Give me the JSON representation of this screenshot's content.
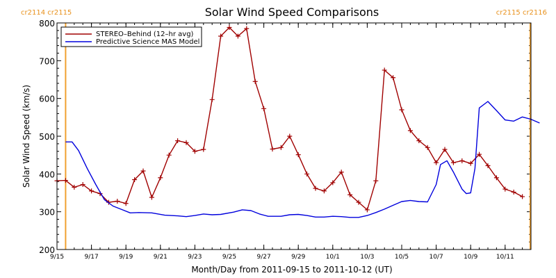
{
  "chart_data": {
    "type": "line",
    "title": "Solar Wind Speed Comparisons",
    "xlabel": "Month/Day from 2011-09-15 to 2011-10-12 (UT)",
    "ylabel": "Solar Wind Speed (km/s)",
    "ylim": [
      200,
      800
    ],
    "yticks": [
      "200",
      "300",
      "400",
      "500",
      "600",
      "700",
      "800"
    ],
    "xlim": [
      "2011-09-15T00:00",
      "2011-10-12T12:00"
    ],
    "xticks": [
      {
        "t": "2011-09-15T00:00",
        "label": "9/15"
      },
      {
        "t": "2011-09-17T00:00",
        "label": "9/17"
      },
      {
        "t": "2011-09-19T00:00",
        "label": "9/19"
      },
      {
        "t": "2011-09-21T00:00",
        "label": "9/21"
      },
      {
        "t": "2011-09-23T00:00",
        "label": "9/23"
      },
      {
        "t": "2011-09-25T00:00",
        "label": "9/25"
      },
      {
        "t": "2011-09-27T00:00",
        "label": "9/27"
      },
      {
        "t": "2011-09-29T00:00",
        "label": "9/29"
      },
      {
        "t": "2011-10-01T00:00",
        "label": "10/1"
      },
      {
        "t": "2011-10-03T00:00",
        "label": "10/3"
      },
      {
        "t": "2011-10-05T00:00",
        "label": "10/5"
      },
      {
        "t": "2011-10-07T00:00",
        "label": "10/7"
      },
      {
        "t": "2011-10-09T00:00",
        "label": "10/9"
      },
      {
        "t": "2011-10-11T00:00",
        "label": "10/11"
      }
    ],
    "rotation_boundaries": [
      {
        "t": "2011-09-15T12:00",
        "label": "cr2114 cr2115",
        "side": "left"
      },
      {
        "t": "2011-10-12T11:00",
        "label": "cr2115 cr2116",
        "side": "right"
      }
    ],
    "legend_position": "top-left",
    "series": [
      {
        "name": "STEREO–Behind (12–hr avg)",
        "color": "#a00000",
        "marker": "plus",
        "points": [
          [
            "2011-09-15T00:00",
            382
          ],
          [
            "2011-09-15T12:00",
            383
          ],
          [
            "2011-09-16T00:00",
            365
          ],
          [
            "2011-09-16T12:00",
            372
          ],
          [
            "2011-09-17T00:00",
            355
          ],
          [
            "2011-09-17T12:00",
            348
          ],
          [
            "2011-09-18T00:00",
            325
          ],
          [
            "2011-09-18T12:00",
            328
          ],
          [
            "2011-09-19T00:00",
            322
          ],
          [
            "2011-09-19T12:00",
            385
          ],
          [
            "2011-09-20T00:00",
            408
          ],
          [
            "2011-09-20T12:00",
            338
          ],
          [
            "2011-09-21T00:00",
            390
          ],
          [
            "2011-09-21T12:00",
            450
          ],
          [
            "2011-09-22T00:00",
            488
          ],
          [
            "2011-09-22T12:00",
            483
          ],
          [
            "2011-09-23T00:00",
            460
          ],
          [
            "2011-09-23T12:00",
            465
          ],
          [
            "2011-09-24T00:00",
            597
          ],
          [
            "2011-09-24T12:00",
            765
          ],
          [
            "2011-09-25T00:00",
            788
          ],
          [
            "2011-09-25T12:00",
            765
          ],
          [
            "2011-09-26T00:00",
            785
          ],
          [
            "2011-09-26T12:00",
            645
          ],
          [
            "2011-09-27T00:00",
            573
          ],
          [
            "2011-09-27T12:00",
            466
          ],
          [
            "2011-09-28T00:00",
            470
          ],
          [
            "2011-09-28T12:00",
            500
          ],
          [
            "2011-09-29T00:00",
            451
          ],
          [
            "2011-09-29T12:00",
            400
          ],
          [
            "2011-09-30T00:00",
            362
          ],
          [
            "2011-09-30T12:00",
            355
          ],
          [
            "2011-10-01T00:00",
            377
          ],
          [
            "2011-10-01T12:00",
            405
          ],
          [
            "2011-10-02T00:00",
            345
          ],
          [
            "2011-10-02T12:00",
            325
          ],
          [
            "2011-10-03T00:00",
            305
          ],
          [
            "2011-10-03T12:00",
            382
          ],
          [
            "2011-10-04T00:00",
            675
          ],
          [
            "2011-10-04T12:00",
            655
          ],
          [
            "2011-10-05T00:00",
            570
          ],
          [
            "2011-10-05T12:00",
            515
          ],
          [
            "2011-10-06T00:00",
            488
          ],
          [
            "2011-10-06T12:00",
            470
          ],
          [
            "2011-10-07T00:00",
            430
          ],
          [
            "2011-10-07T12:00",
            465
          ],
          [
            "2011-10-08T00:00",
            430
          ],
          [
            "2011-10-08T12:00",
            435
          ],
          [
            "2011-10-09T00:00",
            428
          ],
          [
            "2011-10-09T12:00",
            452
          ],
          [
            "2011-10-10T00:00",
            422
          ],
          [
            "2011-10-10T12:00",
            390
          ],
          [
            "2011-10-11T00:00",
            360
          ],
          [
            "2011-10-11T12:00",
            352
          ],
          [
            "2011-10-12T00:00",
            340
          ]
        ]
      },
      {
        "name": "Predictive Science MAS Model",
        "color": "#0000dd",
        "marker": "none",
        "points": [
          [
            "2011-09-15T12:00",
            485
          ],
          [
            "2011-09-15T21:00",
            485
          ],
          [
            "2011-09-16T06:00",
            462
          ],
          [
            "2011-09-16T18:00",
            415
          ],
          [
            "2011-09-17T06:00",
            372
          ],
          [
            "2011-09-17T18:00",
            332
          ],
          [
            "2011-09-18T06:00",
            315
          ],
          [
            "2011-09-18T18:00",
            306
          ],
          [
            "2011-09-19T06:00",
            297
          ],
          [
            "2011-09-19T18:00",
            298
          ],
          [
            "2011-09-20T12:00",
            297
          ],
          [
            "2011-09-21T06:00",
            291
          ],
          [
            "2011-09-22T00:00",
            289
          ],
          [
            "2011-09-22T12:00",
            287
          ],
          [
            "2011-09-23T00:00",
            290
          ],
          [
            "2011-09-23T12:00",
            294
          ],
          [
            "2011-09-24T00:00",
            292
          ],
          [
            "2011-09-24T12:00",
            293
          ],
          [
            "2011-09-25T06:00",
            299
          ],
          [
            "2011-09-25T18:00",
            305
          ],
          [
            "2011-09-26T06:00",
            303
          ],
          [
            "2011-09-26T18:00",
            294
          ],
          [
            "2011-09-27T06:00",
            288
          ],
          [
            "2011-09-28T00:00",
            288
          ],
          [
            "2011-09-28T12:00",
            292
          ],
          [
            "2011-09-29T00:00",
            293
          ],
          [
            "2011-09-29T12:00",
            290
          ],
          [
            "2011-09-30T00:00",
            286
          ],
          [
            "2011-09-30T12:00",
            286
          ],
          [
            "2011-10-01T00:00",
            288
          ],
          [
            "2011-10-01T12:00",
            287
          ],
          [
            "2011-10-02T00:00",
            285
          ],
          [
            "2011-10-02T12:00",
            285
          ],
          [
            "2011-10-03T00:00",
            290
          ],
          [
            "2011-10-03T12:00",
            298
          ],
          [
            "2011-10-04T00:00",
            307
          ],
          [
            "2011-10-04T12:00",
            317
          ],
          [
            "2011-10-05T00:00",
            327
          ],
          [
            "2011-10-05T12:00",
            330
          ],
          [
            "2011-10-06T00:00",
            327
          ],
          [
            "2011-10-06T12:00",
            326
          ],
          [
            "2011-10-07T00:00",
            372
          ],
          [
            "2011-10-07T06:00",
            425
          ],
          [
            "2011-10-07T15:00",
            435
          ],
          [
            "2011-10-08T00:00",
            405
          ],
          [
            "2011-10-08T12:00",
            360
          ],
          [
            "2011-10-08T18:00",
            348
          ],
          [
            "2011-10-09T00:00",
            350
          ],
          [
            "2011-10-09T06:00",
            415
          ],
          [
            "2011-10-09T12:00",
            575
          ],
          [
            "2011-10-10T00:00",
            592
          ],
          [
            "2011-10-10T12:00",
            568
          ],
          [
            "2011-10-11T00:00",
            543
          ],
          [
            "2011-10-11T12:00",
            540
          ],
          [
            "2011-10-12T00:00",
            551
          ],
          [
            "2011-10-12T12:00",
            545
          ],
          [
            "2011-10-13T00:00",
            535
          ]
        ]
      }
    ]
  },
  "colors": {
    "boundary": "#f0a030",
    "background": "#ffffff",
    "axis": "#000000"
  }
}
